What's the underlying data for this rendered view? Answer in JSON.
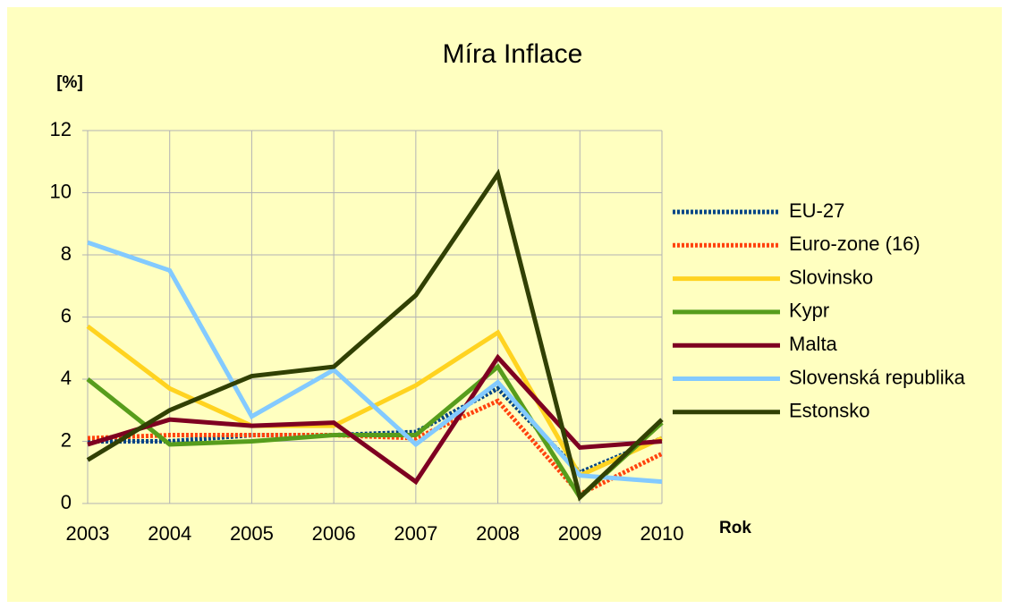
{
  "chart_data": {
    "type": "line",
    "title": "Míra Inflace",
    "y_label": "[%]",
    "x_label": "Rok",
    "categories": [
      "2003",
      "2004",
      "2005",
      "2006",
      "2007",
      "2008",
      "2009",
      "2010"
    ],
    "ylim": [
      0,
      12
    ],
    "yticks": [
      0,
      2,
      4,
      6,
      8,
      10,
      12
    ],
    "grid": true,
    "legend": "right",
    "series": [
      {
        "name": "EU-27",
        "color": "#004586",
        "style": "dotted",
        "values": [
          2.0,
          2.0,
          2.2,
          2.2,
          2.3,
          3.7,
          1.0,
          2.1
        ]
      },
      {
        "name": "Euro-zone (16)",
        "color": "#ff420e",
        "style": "dotted",
        "values": [
          2.1,
          2.2,
          2.2,
          2.2,
          2.1,
          3.3,
          0.3,
          1.6
        ]
      },
      {
        "name": "Slovinsko",
        "color": "#ffd320",
        "style": "solid",
        "values": [
          5.7,
          3.7,
          2.5,
          2.5,
          3.8,
          5.5,
          0.9,
          2.1
        ]
      },
      {
        "name": "Kypr",
        "color": "#579d1c",
        "style": "solid",
        "values": [
          4.0,
          1.9,
          2.0,
          2.2,
          2.2,
          4.4,
          0.2,
          2.6
        ]
      },
      {
        "name": "Malta",
        "color": "#7e0021",
        "style": "solid",
        "values": [
          1.9,
          2.7,
          2.5,
          2.6,
          0.7,
          4.7,
          1.8,
          2.0
        ]
      },
      {
        "name": "Slovenská republika",
        "color": "#83caff",
        "style": "solid",
        "values": [
          8.4,
          7.5,
          2.8,
          4.3,
          1.9,
          3.9,
          0.9,
          0.7
        ]
      },
      {
        "name": "Estonsko",
        "color": "#314004",
        "style": "solid",
        "values": [
          1.4,
          3.0,
          4.1,
          4.4,
          6.7,
          10.6,
          0.2,
          2.7
        ]
      }
    ]
  }
}
